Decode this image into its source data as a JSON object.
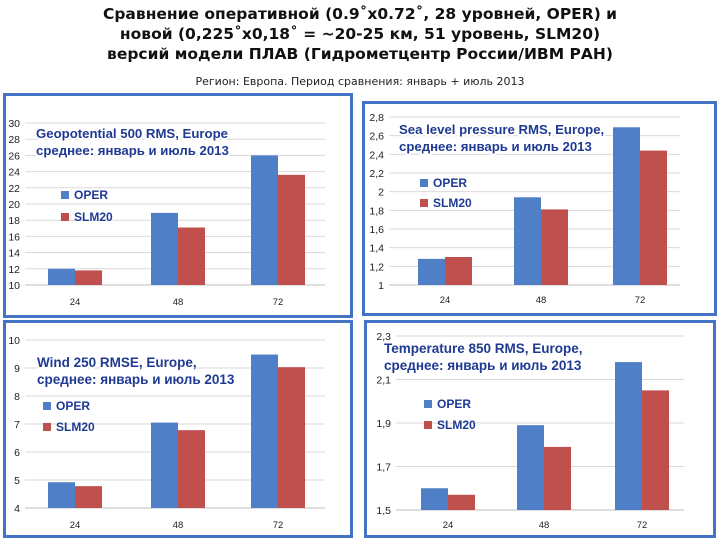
{
  "header": {
    "title_lines": [
      "Сравнение оперативной (0.9˚x0.72˚, 28 уровней, OPER) и",
      "новой (0,225˚x0,18˚ = ~20-25 км, 51 уровень, SLM20)",
      "версий модели ПЛАВ (Гидрометцентр России/ИВМ РАН)"
    ],
    "subtitle": "Регион: Европа. Период сравнения: январь + июль 2013"
  },
  "colors": {
    "oper": "#4f7fc7",
    "slm20": "#c0504d",
    "frame": "#4472c4",
    "title_text": "#1f3a93"
  },
  "chart_data": [
    {
      "type": "bar",
      "title_lines": [
        "Geopotential 500 RMS, Europe",
        "среднее: январь и июль 2013"
      ],
      "categories": [
        "24",
        "48",
        "72"
      ],
      "series": [
        {
          "name": "OPER",
          "values": [
            12.0,
            18.9,
            26.0
          ]
        },
        {
          "name": "SLM20",
          "values": [
            11.8,
            17.1,
            23.6
          ]
        }
      ],
      "ylim": [
        10,
        30
      ],
      "yticks": [
        "10",
        "12",
        "14",
        "16",
        "18",
        "20",
        "22",
        "24",
        "26",
        "28",
        "30"
      ],
      "legend": "left",
      "grid": true
    },
    {
      "type": "bar",
      "title_lines": [
        "Sea level pressure RMS, Europe,",
        "среднее: январь и июль 2013"
      ],
      "categories": [
        "24",
        "48",
        "72"
      ],
      "series": [
        {
          "name": "OPER",
          "values": [
            1.28,
            1.94,
            2.69
          ]
        },
        {
          "name": "SLM20",
          "values": [
            1.3,
            1.81,
            2.44
          ]
        }
      ],
      "ylim": [
        1,
        2.8
      ],
      "yticks": [
        "1",
        "1,2",
        "1,4",
        "1,6",
        "1,8",
        "2",
        "2,2",
        "2,4",
        "2,6",
        "2,8"
      ],
      "legend": "left",
      "grid": true
    },
    {
      "type": "bar",
      "title_lines": [
        "Wind 250 RMSE, Europe,",
        "среднее: январь и июль 2013"
      ],
      "categories": [
        "24",
        "48",
        "72"
      ],
      "series": [
        {
          "name": "OPER",
          "values": [
            4.92,
            7.05,
            9.48
          ]
        },
        {
          "name": "SLM20",
          "values": [
            4.78,
            6.78,
            9.03
          ]
        }
      ],
      "ylim": [
        4,
        10
      ],
      "yticks": [
        "4",
        "5",
        "6",
        "7",
        "8",
        "9",
        "10"
      ],
      "legend": "left",
      "grid": true
    },
    {
      "type": "bar",
      "title_lines": [
        "Temperature 850 RMS, Europe,",
        "среднее: январь и июль 2013"
      ],
      "categories": [
        "24",
        "48",
        "72"
      ],
      "series": [
        {
          "name": "OPER",
          "values": [
            1.6,
            1.89,
            2.18
          ]
        },
        {
          "name": "SLM20",
          "values": [
            1.57,
            1.79,
            2.05
          ]
        }
      ],
      "ylim": [
        1.5,
        2.3
      ],
      "yticks": [
        "1,5",
        "1,7",
        "1,9",
        "2,1",
        "2,3"
      ],
      "legend": "left",
      "grid": true
    }
  ]
}
